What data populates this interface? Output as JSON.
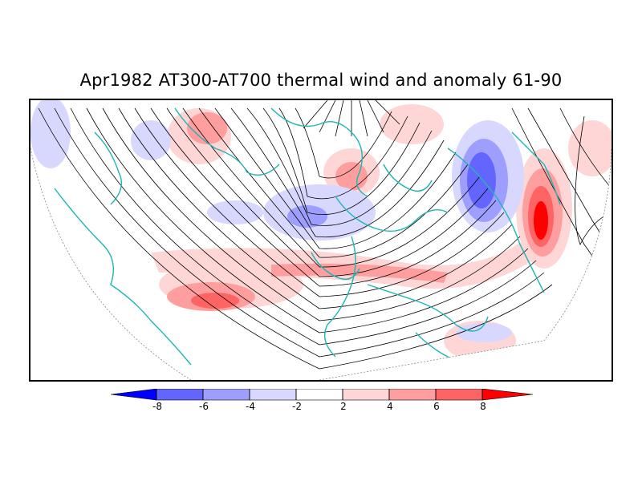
{
  "title": "Apr1982 AT300-AT700 thermal wind and anomaly 61-90",
  "map": {
    "projection": "north-polar-stereographic",
    "field_contour_color": "#000000",
    "coastline_color": "#1fb5b5"
  },
  "colorbar": {
    "labels": [
      "-8",
      "-6",
      "-4",
      "-2",
      "2",
      "4",
      "6",
      "8"
    ],
    "colors": [
      "#0000ff",
      "#6464ff",
      "#9e9eff",
      "#d8d8ff",
      "#ffffff",
      "#ffd6d6",
      "#ff9e9e",
      "#ff6464",
      "#ff0000"
    ]
  }
}
